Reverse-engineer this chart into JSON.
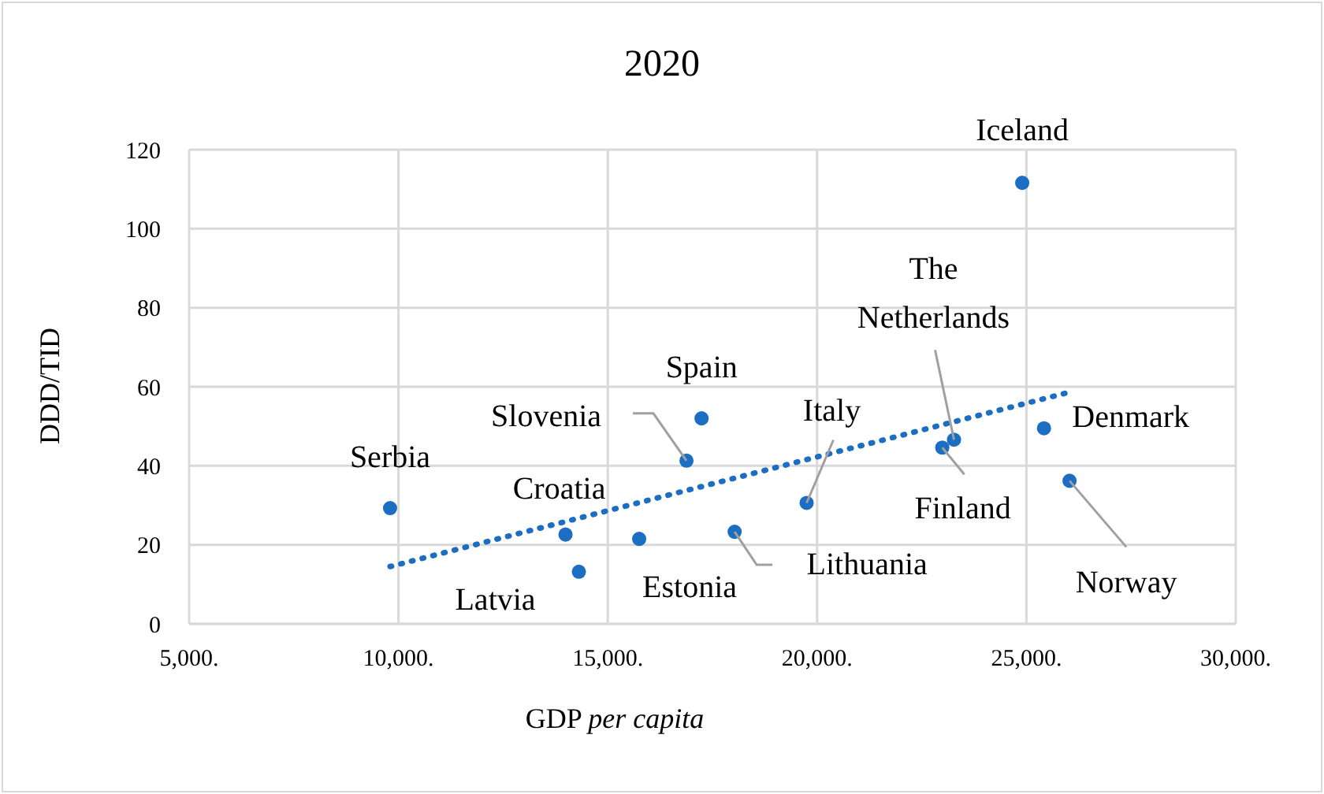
{
  "chart_data": {
    "type": "scatter",
    "title": "2020",
    "xlabel": "GDP per capita",
    "ylabel": "DDD/TID",
    "xlim": [
      5000,
      30000
    ],
    "xticks": [
      {
        "value": 5000,
        "label": "5,000."
      },
      {
        "value": 10000,
        "label": "10,000."
      },
      {
        "value": 15000,
        "label": "15,000."
      },
      {
        "value": 20000,
        "label": "20,000."
      },
      {
        "value": 25000,
        "label": "25,000."
      },
      {
        "value": 30000,
        "label": "30,000."
      }
    ],
    "ylim": [
      0,
      120
    ],
    "yticks": [
      0,
      20,
      40,
      60,
      80,
      100,
      120
    ],
    "grid": true,
    "legend": false,
    "marker": "circle",
    "series": [
      {
        "color": "#1b6ec2",
        "x": [
          9800,
          13990,
          14310,
          15750,
          16880,
          17240,
          18030,
          19750,
          22990,
          23270,
          25420,
          26030,
          24900
        ],
        "values": [
          29.3,
          22.6,
          13.2,
          21.5,
          41.3,
          52.0,
          23.3,
          30.6,
          44.6,
          46.6,
          49.5,
          36.2,
          111.6
        ]
      },
      {
        "type": "line",
        "color": "#1b6ec2",
        "line_style": "dotted",
        "marker": "none",
        "x": [
          9800,
          26050
        ],
        "values": [
          14.5,
          58.7
        ]
      }
    ],
    "annotations": [
      {
        "text": "Serbia",
        "x": 9800,
        "y": 29.3
      },
      {
        "text": "Croatia",
        "x": 13990,
        "y": 22.6
      },
      {
        "text": "Latvia",
        "x": 14310,
        "y": 13.2
      },
      {
        "text": "Estonia",
        "x": 15750,
        "y": 21.5
      },
      {
        "text": "Slovenia",
        "x": 16880,
        "y": 41.3
      },
      {
        "text": "Spain",
        "x": 17240,
        "y": 52.0
      },
      {
        "text": "Lithuania",
        "x": 18030,
        "y": 23.3
      },
      {
        "text": "Italy",
        "x": 19750,
        "y": 30.6
      },
      {
        "text": "Finland",
        "x": 22990,
        "y": 44.6
      },
      {
        "text": "The Netherlands",
        "x": 23270,
        "y": 46.6
      },
      {
        "text": "Denmark",
        "x": 25420,
        "y": 49.5
      },
      {
        "text": "Norway",
        "x": 26030,
        "y": 36.2
      },
      {
        "text": "Iceland",
        "x": 24900,
        "y": 111.6
      }
    ]
  }
}
